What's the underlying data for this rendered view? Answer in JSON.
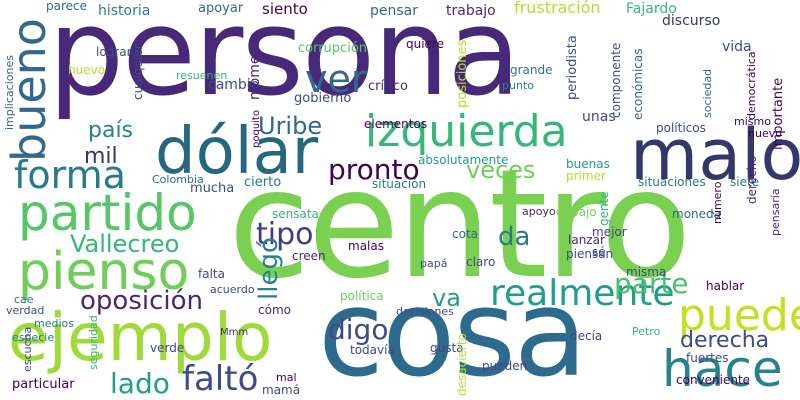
{
  "cloud": {
    "background": "#ffffff",
    "palette": [
      "#440154",
      "#482878",
      "#3e4a89",
      "#31688e",
      "#26828e",
      "#1f9e89",
      "#35b779",
      "#6ece58",
      "#b5de2b",
      "#fde725"
    ],
    "words": {
      "persona": "persona",
      "centro": "centro",
      "cosa": "cosa",
      "ejemplo": "ejemplo",
      "dolar": "dólar",
      "malo": "malo",
      "izquierda": "izquierda",
      "pienso": "pienso",
      "partido": "partido",
      "hace": "hace",
      "puede": "puede",
      "ver": "ver",
      "bueno": "bueno",
      "forma": "forma",
      "realmente": "realmente",
      "falto": "faltó",
      "oposicion": "oposición",
      "pronto": "pronto",
      "derecha": "derecha",
      "veces": "veces",
      "vallecreo": "Vallecreo",
      "parte": "parte",
      "lado": "lado",
      "tipo": "tipo",
      "digo": "digo",
      "llego": "llegó",
      "pais": "país",
      "mil": "mil",
      "uribe": "Uribe",
      "da": "da",
      "va": "va",
      "cambio": "cambio",
      "momento": "momento",
      "siento": "siento",
      "pensar": "pensar",
      "trabajo": "trabajo",
      "frustracion": "frustración",
      "fajardo": "Fajardo",
      "discurso": "discurso",
      "historia": "historia",
      "apoyar": "apoyar",
      "parece": "parece",
      "corrupcion": "corrupción",
      "quiere": "quiere",
      "critico": "crítico",
      "gobierno": "gobierno",
      "posiciones": "posiciones",
      "periodista": "periodista",
      "grande": "grande",
      "punto": "punto",
      "componente": "componente",
      "economicas": "económicas",
      "vida": "vida",
      "sociedad": "sociedad",
      "democratica": "democrática",
      "importante": "importante",
      "mismo": "mismo",
      "nuevo": "nuevo",
      "politicos": "políticos",
      "unas": "unas",
      "elementos": "elementos",
      "absolutamente": "absolutamente",
      "buenas": "buenas",
      "primer": "primer",
      "situaciones": "situaciones",
      "siete": "siete",
      "derecho": "derecho",
      "situacion": "situación",
      "mucha": "mucha",
      "cierto": "cierto",
      "colombia": "Colombia",
      "sensata": "sensata",
      "gente": "gente",
      "apoyo": "apoyo",
      "debajo": "debajo",
      "moneda": "moneda",
      "numero": "número",
      "pensaria": "pensaría",
      "mejor": "mejor",
      "cota": "cota",
      "lanzar": "lanzar",
      "se": "sé",
      "claro": "claro",
      "piensan": "piensan",
      "malas": "malas",
      "creen": "creen",
      "papa": "papá",
      "misma": "misma",
      "hablar": "hablar",
      "falta": "falta",
      "politica": "política",
      "acuerdo": "acuerdo",
      "decisiones": "decisiones",
      "como": "cómo",
      "todavia": "todavía",
      "decia": "decía",
      "gusta": "gusta",
      "pueden": "pueden",
      "fuertes": "fuertes",
      "conveniente": "conveniente",
      "desacierto": "desacierto",
      "particular": "particular",
      "verde": "verde",
      "mama": "mamá",
      "mal": "mal",
      "escucha": "escucha",
      "seguridad": "seguridad",
      "medios": "medios",
      "especie": "especie",
      "verdad": "verdad",
      "cae": "cae",
      "mmm": "Mmm",
      "petro": "Petro",
      "implicaciones": "implicaciones",
      "lograr": "lograr",
      "huevo": "huevo",
      "cualquier": "cualquier",
      "resuenen": "resuenen",
      "pequeño": "poquito"
    }
  }
}
